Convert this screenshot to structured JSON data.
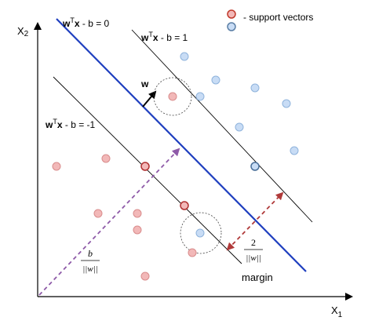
{
  "axes": {
    "x_label": "X",
    "x_sub": "1",
    "y_label": "X",
    "y_sub": "2"
  },
  "legend": {
    "marker_colors": {
      "fill": "#f2b8b8",
      "stroke": "#c0392b"
    },
    "marker2_colors": {
      "fill": "#c8dcf5",
      "stroke": "#5b7fa6"
    },
    "text": "- support vectors"
  },
  "lines": {
    "middle_label": {
      "w": "w",
      "sup": "T",
      "x": "x",
      "rest": " - b = 0"
    },
    "upper_label": {
      "w": "w",
      "sup": "T",
      "x": "x",
      "rest": " - b = 1"
    },
    "lower_label": {
      "w": "w",
      "sup": "T",
      "x": "x",
      "rest": " - b = -1"
    },
    "middle_color": "#1f3fbf",
    "margin_color": "#000000"
  },
  "normal_vector": {
    "label": "w",
    "color": "#000000"
  },
  "margin_annotation": {
    "numerator": "2",
    "denominator": "||w||",
    "label": "margin",
    "arrow_color": "#b03a3a"
  },
  "offset_annotation": {
    "numerator": "b",
    "denominator": "||w||",
    "arrow_color": "#8e5aa8"
  },
  "points": {
    "red_color": {
      "fill": "#f2b8b8",
      "stroke": "#d98c8c"
    },
    "blue_color": {
      "fill": "#c8dcf5",
      "stroke": "#8fb3dc"
    },
    "support_red_stroke": "#b03030",
    "support_blue_stroke": "#4a6f99"
  }
}
